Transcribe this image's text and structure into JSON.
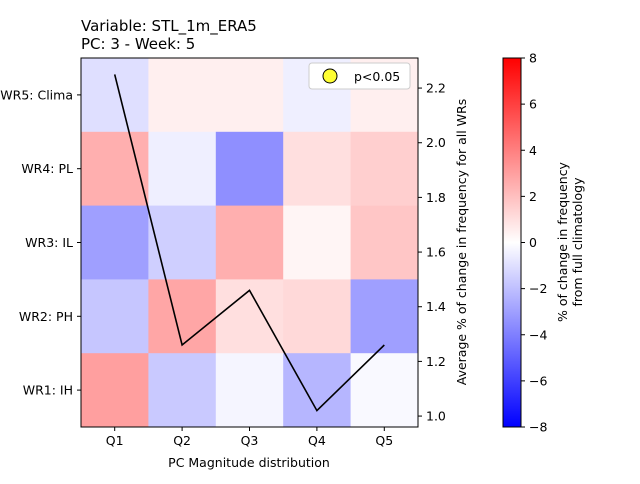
{
  "chart_data": {
    "type": "heatmap",
    "title_lines": [
      "Variable: STL_1m_ERA5",
      "PC: 3 - Week: 5"
    ],
    "xlabel": "PC Magnitude distribution",
    "x_categories": [
      "Q1",
      "Q2",
      "Q3",
      "Q4",
      "Q5"
    ],
    "y_categories": [
      "WR5: Clima",
      "WR4: PL",
      "WR3: IL",
      "WR2: PH",
      "WR1: IH"
    ],
    "cell_values": [
      [
        -1.0,
        0.5,
        0.5,
        -0.5,
        0.5
      ],
      [
        2.5,
        -0.5,
        -3.5,
        1.0,
        1.5
      ],
      [
        -3.0,
        -1.5,
        2.5,
        0.3,
        1.8
      ],
      [
        -1.8,
        2.8,
        1.0,
        1.2,
        -3.0
      ],
      [
        3.0,
        -1.7,
        -0.3,
        -2.3,
        -0.2
      ]
    ],
    "color_scale": {
      "min": -8,
      "max": 8,
      "colormap": "bwr",
      "low_color": "#0000ff",
      "mid_color": "#ffffff",
      "high_color": "#ff0000"
    },
    "colorbar": {
      "label_lines": [
        "% of change in frequency",
        "from full climatology"
      ],
      "ticks": [
        -8,
        -6,
        -4,
        -2,
        0,
        2,
        4,
        6,
        8
      ]
    },
    "line": {
      "x": [
        "Q1",
        "Q2",
        "Q3",
        "Q4",
        "Q5"
      ],
      "values": [
        2.25,
        1.26,
        1.46,
        1.02,
        1.26
      ],
      "color": "#000000"
    },
    "right_axis": {
      "label": "Average % of change in frequency for all WRs",
      "ylim": [
        0.96,
        2.31
      ],
      "ticks": [
        1.0,
        1.2,
        1.4,
        1.6,
        1.8,
        2.0,
        2.2
      ]
    },
    "legend": {
      "position": "top-right",
      "entries": [
        {
          "label": "p<0.05",
          "marker_color": "#ffff33",
          "marker_edge": "#000000"
        }
      ]
    },
    "grid": false
  }
}
